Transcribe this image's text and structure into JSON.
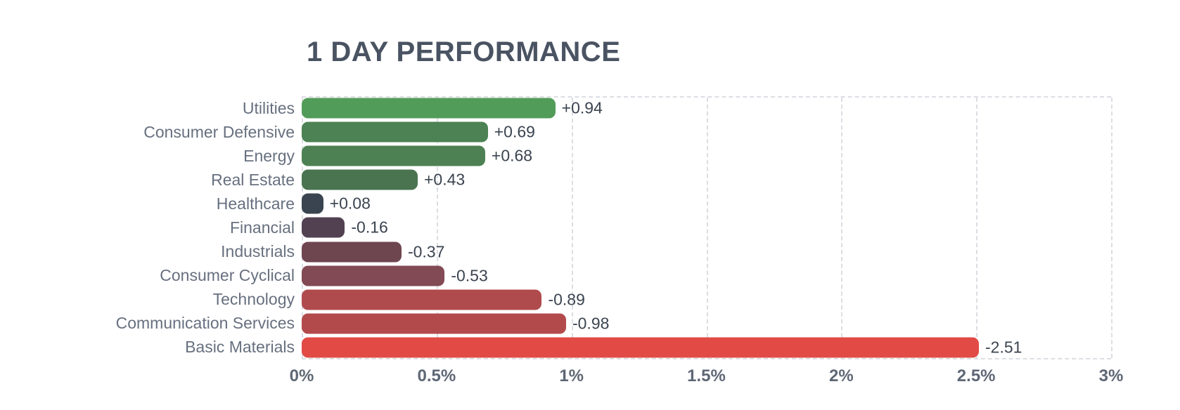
{
  "header": {
    "title": "1 DAY PERFORMANCE"
  },
  "palette": {
    "background": "#ffffff",
    "title_text": "#4a5362",
    "category_text": "#67707f",
    "value_text": "#3b4450",
    "axis_text": "#5e6775",
    "gridline": "#dcdee3"
  },
  "chart_data": {
    "type": "bar",
    "orientation": "horizontal",
    "title": "1 DAY PERFORMANCE",
    "xlabel": "",
    "ylabel": "",
    "xlim": [
      0,
      3
    ],
    "x_unit": "%",
    "grid": "dashed-vertical",
    "bar_length_basis": "absolute value of percent change",
    "x_ticks": [
      {
        "value": 0,
        "label": "0%"
      },
      {
        "value": 0.5,
        "label": "0.5%"
      },
      {
        "value": 1,
        "label": "1%"
      },
      {
        "value": 1.5,
        "label": "1.5%"
      },
      {
        "value": 2,
        "label": "2%"
      },
      {
        "value": 2.5,
        "label": "2.5%"
      },
      {
        "value": 3,
        "label": "3%"
      }
    ],
    "series": [
      {
        "category": "Utilities",
        "value": 0.94,
        "label": "+0.94",
        "color": "#529c59"
      },
      {
        "category": "Consumer Defensive",
        "value": 0.69,
        "label": "+0.69",
        "color": "#4d8254"
      },
      {
        "category": "Energy",
        "value": 0.68,
        "label": "+0.68",
        "color": "#4d8153"
      },
      {
        "category": "Real Estate",
        "value": 0.43,
        "label": "+0.43",
        "color": "#4a7450"
      },
      {
        "category": "Healthcare",
        "value": 0.08,
        "label": "+0.08",
        "color": "#3a4450"
      },
      {
        "category": "Financial",
        "value": -0.16,
        "label": "-0.16",
        "color": "#514151"
      },
      {
        "category": "Industrials",
        "value": -0.37,
        "label": "-0.37",
        "color": "#6e4650"
      },
      {
        "category": "Consumer Cyclical",
        "value": -0.53,
        "label": "-0.53",
        "color": "#824a54"
      },
      {
        "category": "Technology",
        "value": -0.89,
        "label": "-0.89",
        "color": "#b04b4d"
      },
      {
        "category": "Communication Services",
        "value": -0.98,
        "label": "-0.98",
        "color": "#b24a4c"
      },
      {
        "category": "Basic Materials",
        "value": -2.51,
        "label": "-2.51",
        "color": "#e24a45"
      }
    ]
  }
}
